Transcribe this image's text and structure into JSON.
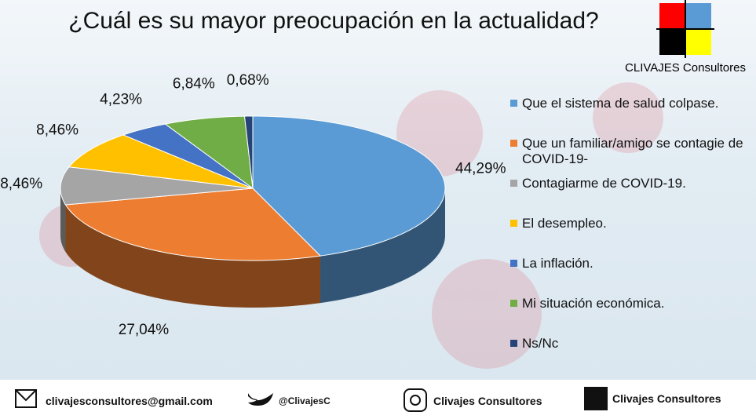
{
  "chart_data": {
    "type": "pie3d",
    "title": "¿Cuál es su mayor preocupación en la actualidad?",
    "categories": [
      "Que el sistema de salud colpase.",
      "Que un familiar/amigo se contagie de COVID-19-",
      "Contagiarme de COVID-19.",
      "El desempleo.",
      "La inflación.",
      "Mi situación económica.",
      "Ns/Nc"
    ],
    "values": [
      44.29,
      27.04,
      8.46,
      8.46,
      4.23,
      6.84,
      0.68
    ],
    "value_labels": [
      "44,29%",
      "27,04%",
      "8,46%",
      "8,46%",
      "4,23%",
      "6,84%",
      "0,68%"
    ],
    "colors": [
      "#5b9bd5",
      "#ed7d31",
      "#a5a5a5",
      "#ffc000",
      "#4472c4",
      "#70ad47",
      "#264478"
    ]
  },
  "brand": "CLIVAJES Consultores",
  "footer": [
    "clivajesconsultores@gmail.com",
    "@ClivajesC",
    "Clivajes Consultores",
    "Clivajes Consultores"
  ]
}
